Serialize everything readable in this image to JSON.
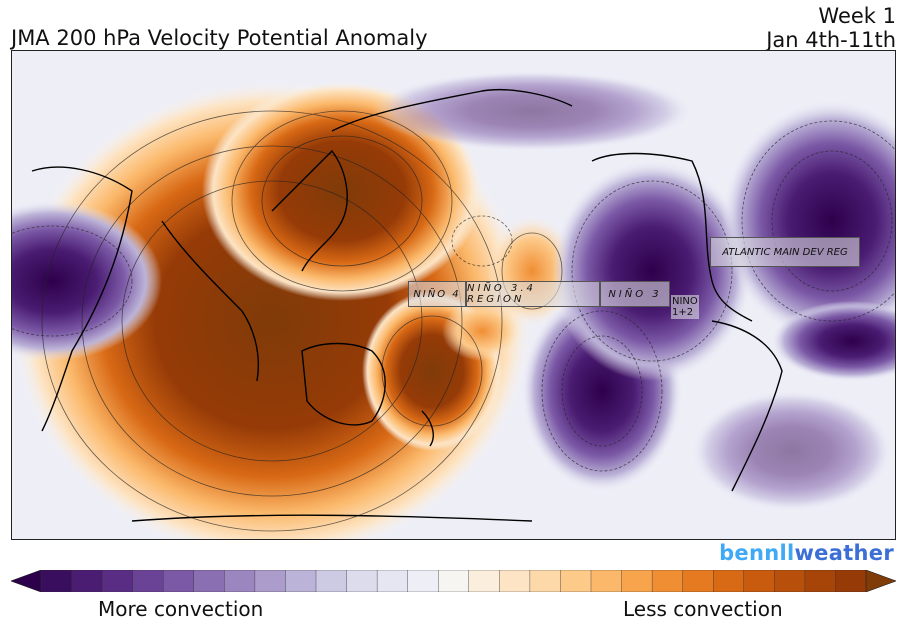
{
  "header": {
    "title": "JMA 200 hPa Velocity Potential Anomaly",
    "week": "Week 1",
    "dates": "Jan 4th-11th"
  },
  "regions": {
    "nino4": "NIÑO 4",
    "nino34": "NIÑO 3.4 REGION",
    "nino3": "NIÑO 3",
    "nino12_line1": "NINO",
    "nino12_line2": "1+2",
    "atlantic": "ATLANTIC MAIN DEV REG"
  },
  "brand": {
    "prefix": "benn",
    "mid": "ll",
    "suffix": "weather"
  },
  "colorbar": {
    "left_label": "More convection",
    "right_label": "Less convection",
    "colors": [
      "#2d004b",
      "#3a0e5f",
      "#4a1c72",
      "#5a2d84",
      "#6b4396",
      "#7b59a6",
      "#8b6fb3",
      "#9b86c0",
      "#ab9ccc",
      "#bcb3d8",
      "#cdcae4",
      "#dcdcec",
      "#e6e6f2",
      "#eeeef7",
      "#f6f5f2",
      "#fbeedd",
      "#fde4c4",
      "#fdd8a8",
      "#fdca8a",
      "#fbb86a",
      "#f7a44d",
      "#f08e34",
      "#e67a21",
      "#d86915",
      "#c95b0e",
      "#b84f0a",
      "#a74408",
      "#963b07",
      "#7f3b08"
    ]
  }
}
